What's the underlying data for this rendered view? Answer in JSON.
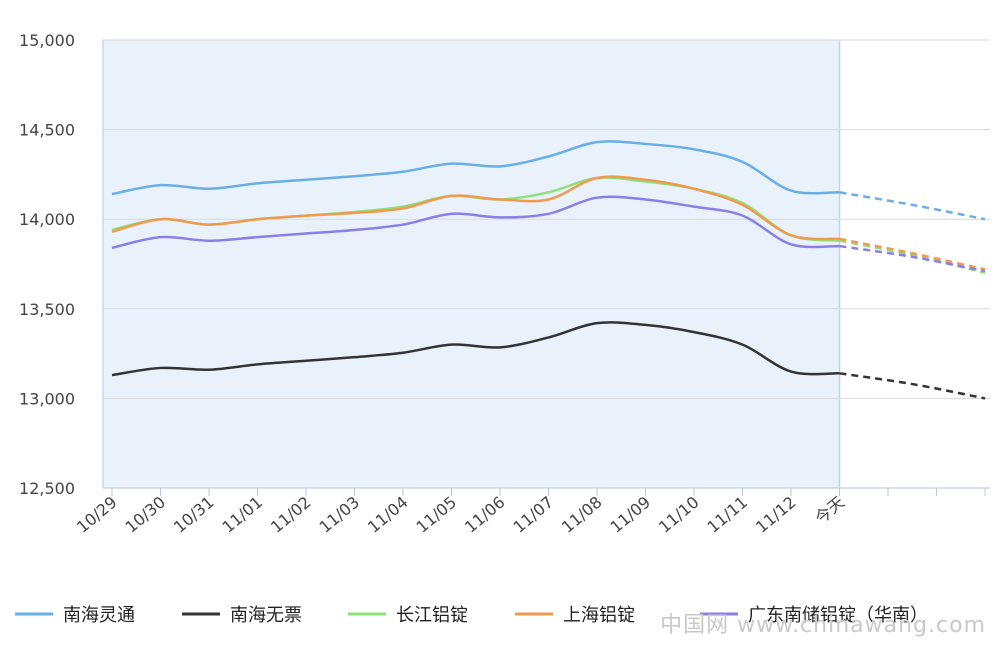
{
  "chart_data": {
    "type": "line",
    "categories": [
      "10/29",
      "10/30",
      "10/31",
      "11/01",
      "11/02",
      "11/03",
      "11/04",
      "11/05",
      "11/06",
      "11/07",
      "11/08",
      "11/09",
      "11/10",
      "11/11",
      "11/12",
      "今天"
    ],
    "y_ticks": [
      "15,000",
      "14,500",
      "14,000",
      "13,500",
      "13,000",
      "12,500"
    ],
    "ylim": [
      12500,
      15000
    ],
    "grid": "horizontal",
    "legend_position": "bottom",
    "series": [
      {
        "name": "南海灵通",
        "color": "#6aaee8",
        "values": [
          14140,
          14190,
          14170,
          14200,
          14220,
          14240,
          14265,
          14310,
          14295,
          14350,
          14430,
          14420,
          14390,
          14320,
          14160,
          14150
        ],
        "forecast": [
          14150,
          14080,
          14000
        ]
      },
      {
        "name": "南海无票",
        "color": "#333333",
        "values": [
          13130,
          13170,
          13160,
          13190,
          13210,
          13230,
          13255,
          13300,
          13285,
          13340,
          13420,
          13410,
          13370,
          13300,
          13150,
          13140
        ],
        "forecast": [
          13140,
          13080,
          13000
        ]
      },
      {
        "name": "长江铝锭",
        "color": "#8fe07a",
        "values": [
          13940,
          14000,
          13970,
          14000,
          14020,
          14040,
          14070,
          14130,
          14110,
          14150,
          14230,
          14210,
          14170,
          14090,
          13910,
          13880
        ],
        "forecast": [
          13880,
          13800,
          13700
        ]
      },
      {
        "name": "上海铝锭",
        "color": "#f09a4e",
        "values": [
          13930,
          14000,
          13970,
          14000,
          14020,
          14035,
          14060,
          14130,
          14110,
          14110,
          14230,
          14220,
          14170,
          14080,
          13910,
          13890
        ],
        "forecast": [
          13890,
          13810,
          13720
        ]
      },
      {
        "name": "广东南储铝锭（华南）",
        "color": "#8a7fe8",
        "values": [
          13840,
          13900,
          13880,
          13900,
          13920,
          13940,
          13970,
          14030,
          14010,
          14030,
          14120,
          14110,
          14070,
          14020,
          13860,
          13850
        ],
        "forecast": [
          13850,
          13790,
          13710
        ]
      }
    ]
  },
  "watermark": {
    "footer_text": "中国网 www.chinawang.com"
  }
}
